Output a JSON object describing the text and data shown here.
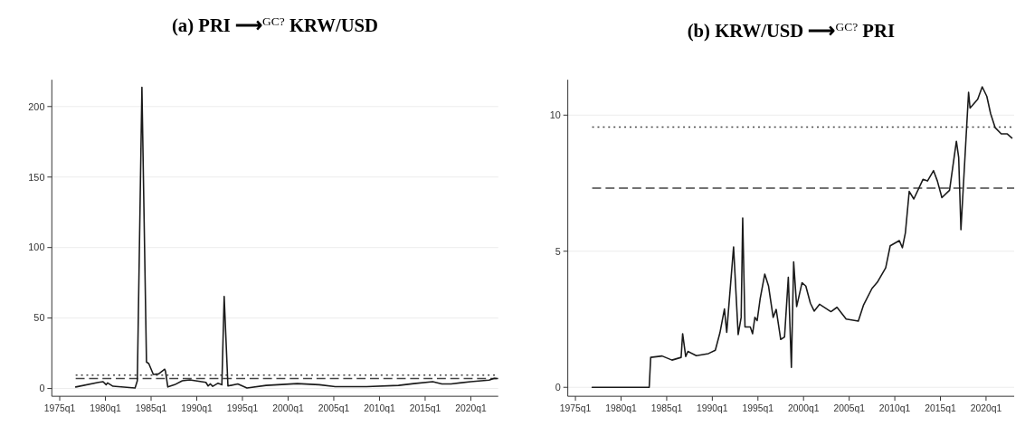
{
  "chart_data": [
    {
      "type": "line",
      "title": "(a) PRI ⟶$^{GC?}$ KRW/USD",
      "xlim": [
        "1974-02-20",
        "2023-01-01"
      ],
      "xticks": [
        {
          "value": "1975-01-01",
          "label": "1975q1"
        },
        {
          "value": "1980-01-01",
          "label": "1980q1"
        },
        {
          "value": "1985-01-01",
          "label": "1985q1"
        },
        {
          "value": "1990-01-01",
          "label": "1990q1"
        },
        {
          "value": "1995-01-01",
          "label": "1995q1"
        },
        {
          "value": "2000-01-01",
          "label": "2000q1"
        },
        {
          "value": "2005-01-01",
          "label": "2005q1"
        },
        {
          "value": "2010-01-01",
          "label": "2010q1"
        },
        {
          "value": "2015-01-01",
          "label": "2015q1"
        },
        {
          "value": "2020-01-01",
          "label": "2020q1"
        }
      ],
      "ylim": [
        -5.5,
        219
      ],
      "yticks": [
        0,
        50,
        100,
        150,
        200
      ],
      "grid": "y",
      "x": [
        "1976-10",
        "1979-04",
        "1979-10",
        "1980-02",
        "1980-04",
        "1980-11",
        "1983-04",
        "1983-07",
        "1984-01",
        "1984-07",
        "1984-10",
        "1985-04",
        "1985-11",
        "1986-07",
        "1986-08",
        "1986-11",
        "1987-08",
        "1988-06",
        "1989-04",
        "1991-01",
        "1991-04",
        "1991-07",
        "1991-10",
        "1992-05",
        "1992-10",
        "1993-01",
        "1993-06",
        "1994-07",
        "1995-07",
        "1997-08",
        "2001-01",
        "2003-06",
        "2005-03",
        "2008-08",
        "2012-02",
        "2013-10",
        "2015-11",
        "2016-11",
        "2017-11",
        "2020-01",
        "2022-01",
        "2022-08",
        "2022-11"
      ],
      "series": [
        {
          "color": "#1a1a1a",
          "values": [
            1.1,
            4.4,
            4.9,
            2.7,
            4,
            1.6,
            0.4,
            5.5,
            213.7,
            18.8,
            17.7,
            10,
            10.4,
            13.7,
            12.2,
            1.1,
            2.7,
            5.5,
            6.2,
            4.4,
            1.8,
            3.3,
            1.6,
            3.8,
            2.7,
            65.3,
            1.8,
            3.3,
            0.4,
            2.2,
            3.5,
            2.7,
            1.3,
            1.3,
            2.2,
            3.5,
            4.9,
            3.3,
            3.3,
            4.9,
            6.0,
            7.3,
            7.1
          ]
        }
      ],
      "ref_lines": [
        {
          "axis": "y",
          "value": 9.5,
          "color": "#444444",
          "line_style": "dotted"
        },
        {
          "axis": "y",
          "value": 7.1,
          "color": "#444444",
          "line_style": "dashed"
        }
      ]
    },
    {
      "type": "line",
      "title": "(b) KRW/USD ⟶$^{GC?}$ PRI",
      "xlim": [
        "1974-03-01",
        "2023-02-01"
      ],
      "xticks": [
        {
          "value": "1975-01-01",
          "label": "1975q1"
        },
        {
          "value": "1980-01-01",
          "label": "1980q1"
        },
        {
          "value": "1985-01-01",
          "label": "1985q1"
        },
        {
          "value": "1990-01-01",
          "label": "1990q1"
        },
        {
          "value": "1995-01-01",
          "label": "1995q1"
        },
        {
          "value": "2000-01-01",
          "label": "2000q1"
        },
        {
          "value": "2005-01-01",
          "label": "2005q1"
        },
        {
          "value": "2010-01-01",
          "label": "2010q1"
        },
        {
          "value": "2015-01-01",
          "label": "2015q1"
        },
        {
          "value": "2020-01-01",
          "label": "2020q1"
        }
      ],
      "ylim": [
        -0.33,
        11.3
      ],
      "yticks": [
        0,
        5,
        10
      ],
      "grid": "y",
      "x": [
        "1976-11",
        "1983-02",
        "1983-04",
        "1984-07",
        "1985-08",
        "1986-08",
        "1986-10",
        "1987-02",
        "1987-05",
        "1988-04",
        "1989-08",
        "1990-05",
        "1990-11",
        "1991-05",
        "1991-08",
        "1992-05",
        "1992-11",
        "1993-03",
        "1993-05",
        "1993-08",
        "1994-03",
        "1994-06",
        "1994-09",
        "1994-12",
        "1995-04",
        "1995-10",
        "1996-03",
        "1996-09",
        "1997-01",
        "1997-07",
        "1997-12",
        "1998-05",
        "1998-09",
        "1998-12",
        "1999-04",
        "1999-11",
        "2000-04",
        "2000-10",
        "2001-03",
        "2001-10",
        "2003-01",
        "2003-09",
        "2004-09",
        "2006-01",
        "2006-08",
        "2007-07",
        "2008-02",
        "2009-01",
        "2009-07",
        "2010-07",
        "2010-11",
        "2011-03",
        "2011-08",
        "2012-02",
        "2013-02",
        "2013-08",
        "2014-04",
        "2014-09",
        "2015-03",
        "2016-01",
        "2016-05",
        "2016-10",
        "2017-01",
        "2017-04",
        "2018-02",
        "2018-04",
        "2019-02",
        "2019-08",
        "2020-02",
        "2020-07",
        "2021-01",
        "2021-09",
        "2022-05",
        "2022-11"
      ],
      "series": [
        {
          "color": "#1a1a1a",
          "values": [
            0,
            0,
            1.1,
            1.15,
            1.0,
            1.1,
            1.97,
            1.13,
            1.32,
            1.16,
            1.24,
            1.36,
            2.0,
            2.88,
            2.02,
            5.16,
            1.94,
            2.57,
            6.22,
            2.22,
            2.22,
            1.97,
            2.57,
            2.45,
            3.26,
            4.16,
            3.72,
            2.57,
            2.86,
            1.76,
            1.85,
            4.04,
            0.73,
            4.61,
            2.97,
            3.84,
            3.72,
            3.09,
            2.8,
            3.05,
            2.78,
            2.94,
            2.51,
            2.43,
            3.03,
            3.63,
            3.86,
            4.39,
            5.2,
            5.39,
            5.13,
            5.68,
            7.2,
            6.92,
            7.64,
            7.58,
            7.96,
            7.58,
            6.97,
            7.24,
            8.04,
            9.04,
            8.44,
            5.79,
            10.84,
            10.26,
            10.58,
            11.04,
            10.69,
            10.06,
            9.54,
            9.31,
            9.31,
            9.16
          ]
        }
      ],
      "ref_lines": [
        {
          "axis": "y",
          "value": 9.56,
          "color": "#444444",
          "line_style": "dotted"
        },
        {
          "axis": "y",
          "value": 7.32,
          "color": "#444444",
          "line_style": "dashed"
        }
      ]
    }
  ]
}
